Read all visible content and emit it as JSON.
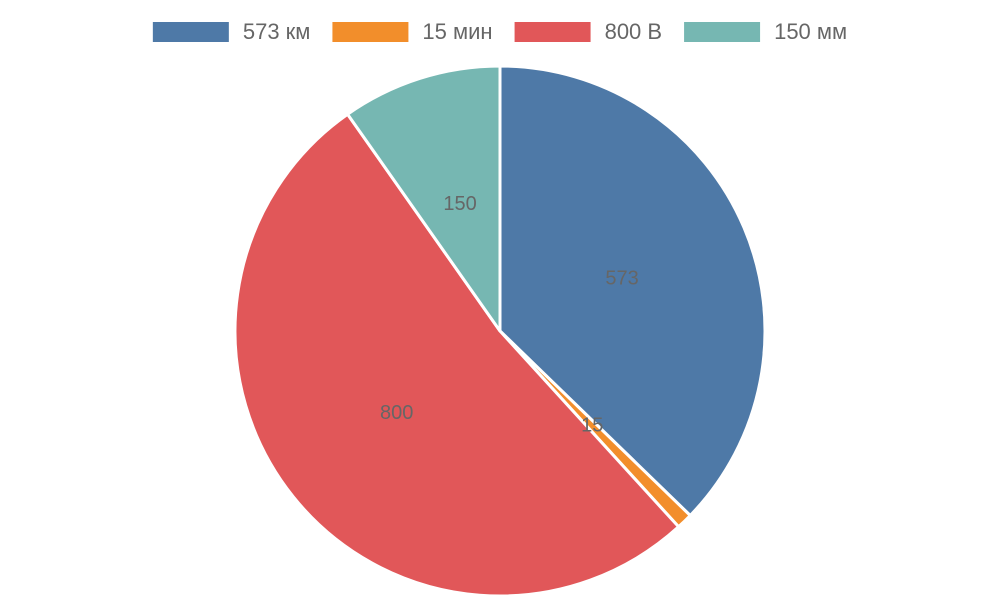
{
  "chart_data": {
    "type": "pie",
    "categories": [
      "573 км",
      "15 мин",
      "800 В",
      "150 мм"
    ],
    "values": [
      573,
      15,
      800,
      150
    ],
    "colors": [
      "#4e79a7",
      "#f28e2b",
      "#e15759",
      "#76b7b2"
    ],
    "legend": "top"
  }
}
